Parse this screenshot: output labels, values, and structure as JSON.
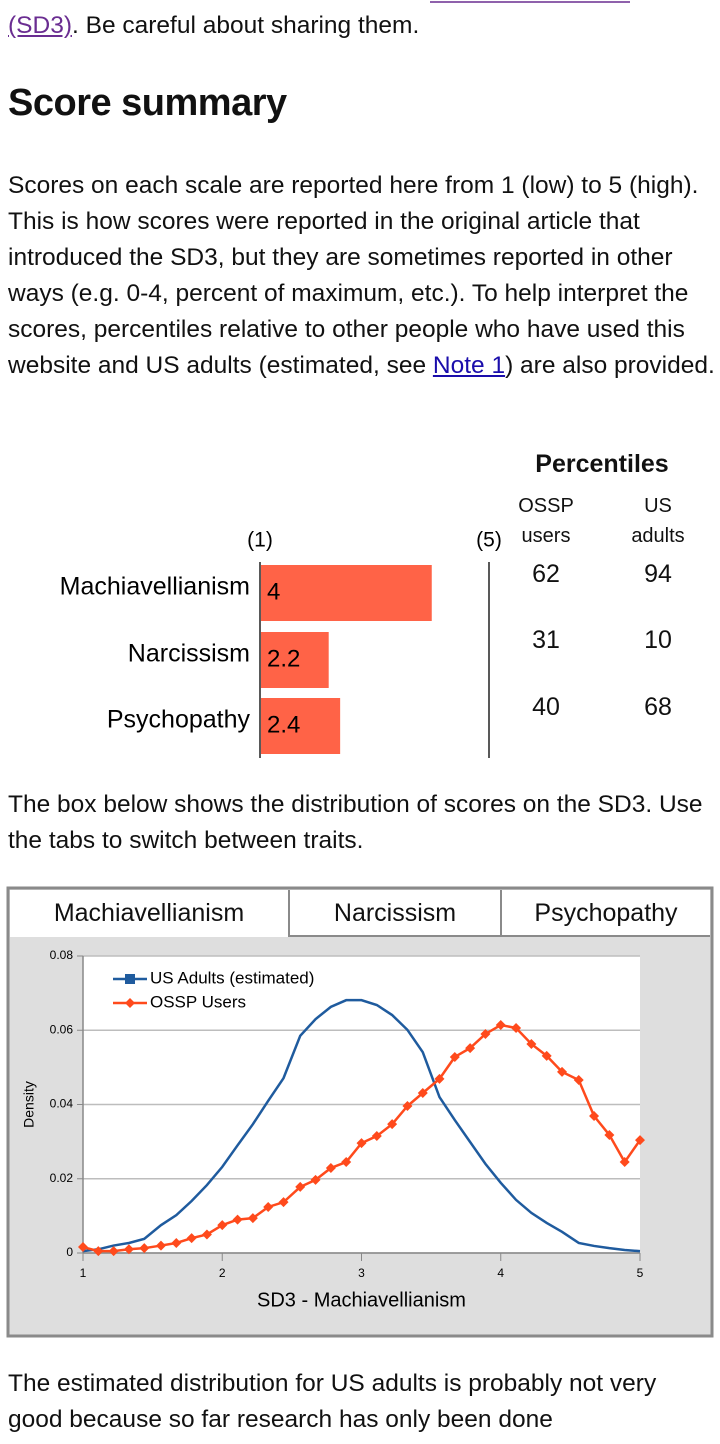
{
  "top_line": {
    "link": "(SD3)",
    "text": ". Be careful about sharing them."
  },
  "heading": "Score summary",
  "intro": {
    "before": "Scores on each scale are reported here from 1 (low) to 5 (high). This is how scores were reported in the original article that introduced the SD3, but they are sometimes reported in other ways (e.g. 0-4, percent of maximum, etc.). To help interpret the scores, percentiles relative to other people who have used this website and US adults (estimated, see ",
    "link": "Note 1",
    "after": ") are also provided."
  },
  "percentiles": {
    "title": "Percentiles",
    "columns": [
      "OSSP users",
      "US adults"
    ],
    "rows": [
      [
        62,
        94
      ],
      [
        31,
        10
      ],
      [
        40,
        68
      ]
    ]
  },
  "box_text": "The box below shows the distribution of scores on the SD3. Use the tabs to switch between traits.",
  "tabs": [
    "Machiavellianism",
    "Narcissism",
    "Psychopathy"
  ],
  "closing": "The estimated distribution for US adults is probably not very good because so far research has only been done",
  "chart_data": [
    {
      "type": "bar",
      "orientation": "horizontal",
      "categories": [
        "Machiavellianism",
        "Narcissism",
        "Psychopathy"
      ],
      "values": [
        4,
        2.2,
        2.4
      ],
      "color": "#ff6347",
      "xlim": [
        1,
        5
      ],
      "xticks": [
        {
          "value": 1,
          "label": "(1)"
        },
        {
          "value": 5,
          "label": "(5)"
        }
      ]
    },
    {
      "type": "line",
      "xlabel": "SD3 - Machiavellianism",
      "ylabel": "Density",
      "x": [
        1,
        1.11,
        1.22,
        1.33,
        1.44,
        1.56,
        1.67,
        1.78,
        1.89,
        2,
        2.11,
        2.22,
        2.33,
        2.44,
        2.56,
        2.67,
        2.78,
        2.89,
        3,
        3.11,
        3.22,
        3.33,
        3.44,
        3.56,
        3.67,
        3.78,
        3.89,
        4,
        4.11,
        4.22,
        4.33,
        4.44,
        4.56,
        4.67,
        4.78,
        4.89,
        5
      ],
      "series": [
        {
          "name": "US Adults (estimated)",
          "color": "#1f5b9e",
          "legend_marker": "square",
          "values": [
            0.0005,
            0.001,
            0.002,
            0.0027,
            0.0038,
            0.0075,
            0.0102,
            0.014,
            0.0183,
            0.0232,
            0.029,
            0.0347,
            0.041,
            0.0471,
            0.0585,
            0.063,
            0.0663,
            0.0681,
            0.0681,
            0.0668,
            0.0641,
            0.0601,
            0.0541,
            0.042,
            0.0358,
            0.0299,
            0.024,
            0.0189,
            0.0143,
            0.0108,
            0.0081,
            0.0057,
            0.0027,
            0.0019,
            0.0013,
            0.0008,
            0.0005
          ]
        },
        {
          "name": "OSSP Users",
          "color": "#ff4a1c",
          "marker": "diamond",
          "values": [
            0.0016,
            0.0005,
            0.0005,
            0.001,
            0.0013,
            0.002,
            0.0027,
            0.004,
            0.005,
            0.0075,
            0.009,
            0.0094,
            0.0124,
            0.0137,
            0.0178,
            0.0197,
            0.0229,
            0.0245,
            0.0296,
            0.0315,
            0.0347,
            0.0396,
            0.0431,
            0.0469,
            0.0528,
            0.0552,
            0.059,
            0.0614,
            0.0606,
            0.0563,
            0.0531,
            0.0488,
            0.0466,
            0.0369,
            0.0318,
            0.0245,
            0.0304
          ]
        }
      ],
      "xlim": [
        1,
        5
      ],
      "xticks": [
        1,
        2,
        3,
        4,
        5
      ],
      "ylim": [
        0,
        0.08
      ],
      "yticks": [
        0,
        0.02,
        0.04,
        0.06,
        0.08
      ],
      "grid": true,
      "legend": "top-left"
    }
  ]
}
